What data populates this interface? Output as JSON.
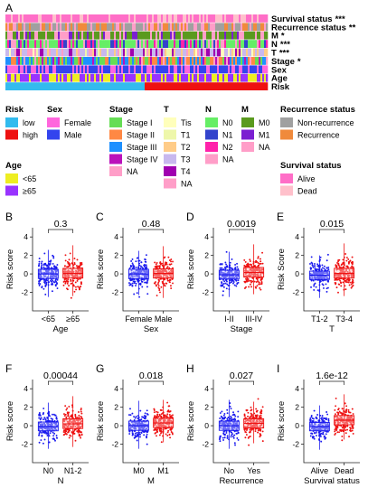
{
  "panel_a": {
    "label": "A",
    "tracks": [
      {
        "name": "Survival status",
        "sig": "***"
      },
      {
        "name": "Recurrence status",
        "sig": "**"
      },
      {
        "name": "M",
        "sig": "*"
      },
      {
        "name": "N",
        "sig": "***"
      },
      {
        "name": "T",
        "sig": "***"
      },
      {
        "name": "Stage",
        "sig": "*"
      },
      {
        "name": "Sex",
        "sig": ""
      },
      {
        "name": "Age",
        "sig": ""
      },
      {
        "name": "Risk",
        "sig": ""
      }
    ],
    "colors": {
      "Survival status": {
        "Alive": "#ff6ec7",
        "Dead": "#ffc0cb"
      },
      "Recurrence status": {
        "Non-recurrence": "#a0a0a0",
        "Recurrence": "#f08a3c",
        "NA": "#ff9ec8"
      },
      "M": {
        "M0": "#5a9a1e",
        "M1": "#7b1fd1",
        "NA": "#ff9ec8"
      },
      "N": {
        "N0": "#66ee66",
        "N1": "#3344cc",
        "N2": "#ff22aa",
        "NA": "#ff9ec8"
      },
      "T": {
        "Tis": "#ffffbb",
        "T1": "#eef7aa",
        "T2": "#ffcc88",
        "T3": "#c8b8ee",
        "T4": "#a000b0",
        "NA": "#ff9ec8"
      },
      "Stage": {
        "Stage I": "#66dd55",
        "Stage II": "#ff8844",
        "Stage III": "#1e90ff",
        "Stage IV": "#bb11bb",
        "NA": "#ff9ec8"
      },
      "Sex": {
        "Female": "#ff66dd",
        "Male": "#3344ee"
      },
      "Age": {
        "<65": "#eeee22",
        "≥65": "#9933ff"
      },
      "Risk": {
        "low": "#33bbee",
        "high": "#ee1111"
      }
    },
    "risk_low_fraction": 0.53
  },
  "legend": {
    "risk": {
      "title": "Risk",
      "items": [
        "low",
        "high"
      ]
    },
    "sex": {
      "title": "Sex",
      "items": [
        "Female",
        "Male"
      ]
    },
    "stage": {
      "title": "Stage",
      "items": [
        "Stage I",
        "Stage II",
        "Stage III",
        "Stage IV",
        "NA"
      ]
    },
    "t": {
      "title": "T",
      "items": [
        "Tis",
        "T1",
        "T2",
        "T3",
        "T4",
        "NA"
      ]
    },
    "n": {
      "title": "N",
      "items": [
        "N0",
        "N1",
        "N2",
        "NA"
      ]
    },
    "m": {
      "title": "M",
      "items": [
        "M0",
        "M1",
        "NA"
      ]
    },
    "recurrence": {
      "title": "Recurrence status",
      "items": [
        "Non-recurrence",
        "Recurrence"
      ]
    },
    "age": {
      "title": "Age",
      "items": [
        "<65",
        "≥65"
      ]
    },
    "survival": {
      "title": "Survival status",
      "items": [
        "Alive",
        "Dead"
      ]
    }
  },
  "chart_data": [
    {
      "type": "box",
      "panel": "B",
      "categories": [
        "<65",
        "≥65"
      ],
      "xlabel": "Age",
      "ylabel": "Risk score",
      "pvalue": "0.3",
      "ylim": [
        -4,
        5
      ],
      "yticks": [
        -2,
        0,
        2,
        4
      ],
      "series": [
        {
          "group": "<65",
          "median": 0.0,
          "q1": -0.5,
          "q3": 0.5,
          "min": -2.5,
          "max": 2.6
        },
        {
          "group": "≥65",
          "median": 0.05,
          "q1": -0.45,
          "q3": 0.6,
          "min": -2.4,
          "max": 3.1
        }
      ]
    },
    {
      "type": "box",
      "panel": "C",
      "categories": [
        "Female",
        "Male"
      ],
      "xlabel": "Sex",
      "ylabel": "Risk score",
      "pvalue": "0.48",
      "ylim": [
        -4,
        5
      ],
      "yticks": [
        -2,
        0,
        2,
        4
      ],
      "series": [
        {
          "group": "Female",
          "median": 0.0,
          "q1": -0.5,
          "q3": 0.5,
          "min": -2.3,
          "max": 2.5
        },
        {
          "group": "Male",
          "median": 0.05,
          "q1": -0.45,
          "q3": 0.55,
          "min": -2.6,
          "max": 3.0
        }
      ]
    },
    {
      "type": "box",
      "panel": "D",
      "categories": [
        "I-II",
        "III-IV"
      ],
      "xlabel": "Stage",
      "ylabel": "Risk score",
      "pvalue": "0.0019",
      "ylim": [
        -4,
        5
      ],
      "yticks": [
        -2,
        0,
        2,
        4
      ],
      "series": [
        {
          "group": "I-II",
          "median": -0.1,
          "q1": -0.55,
          "q3": 0.4,
          "min": -2.5,
          "max": 2.4
        },
        {
          "group": "III-IV",
          "median": 0.15,
          "q1": -0.35,
          "q3": 0.7,
          "min": -2.2,
          "max": 3.2
        }
      ]
    },
    {
      "type": "box",
      "panel": "E",
      "categories": [
        "T1-2",
        "T3-4"
      ],
      "xlabel": "T",
      "ylabel": "Risk Score",
      "pvalue": "0.015",
      "ylim": [
        -4,
        5
      ],
      "yticks": [
        -2,
        0,
        2,
        4
      ],
      "series": [
        {
          "group": "T1-2",
          "median": -0.15,
          "q1": -0.6,
          "q3": 0.3,
          "min": -2.6,
          "max": 2.0
        },
        {
          "group": "T3-4",
          "median": 0.05,
          "q1": -0.45,
          "q3": 0.6,
          "min": -2.4,
          "max": 3.3
        }
      ]
    },
    {
      "type": "box",
      "panel": "F",
      "categories": [
        "N0",
        "N1-2"
      ],
      "xlabel": "N",
      "ylabel": "Risk score",
      "pvalue": "0.00044",
      "ylim": [
        -4,
        5
      ],
      "yticks": [
        -2,
        0,
        2,
        4
      ],
      "series": [
        {
          "group": "N0",
          "median": -0.1,
          "q1": -0.55,
          "q3": 0.4,
          "min": -2.5,
          "max": 2.5
        },
        {
          "group": "N1-2",
          "median": 0.2,
          "q1": -0.3,
          "q3": 0.75,
          "min": -2.3,
          "max": 3.2
        }
      ]
    },
    {
      "type": "box",
      "panel": "G",
      "categories": [
        "M0",
        "M1"
      ],
      "xlabel": "M",
      "ylabel": "Risk score",
      "pvalue": "0.018",
      "ylim": [
        -4,
        5
      ],
      "yticks": [
        -2,
        0,
        2,
        4
      ],
      "series": [
        {
          "group": "M0",
          "median": 0.0,
          "q1": -0.5,
          "q3": 0.5,
          "min": -2.5,
          "max": 2.7
        },
        {
          "group": "M1",
          "median": 0.3,
          "q1": -0.2,
          "q3": 0.8,
          "min": -1.8,
          "max": 2.8
        }
      ]
    },
    {
      "type": "box",
      "panel": "H",
      "categories": [
        "No",
        "Yes"
      ],
      "xlabel": "Recurrence",
      "ylabel": "Risk score",
      "pvalue": "0.027",
      "ylim": [
        -4,
        5
      ],
      "yticks": [
        -2,
        0,
        2,
        4
      ],
      "series": [
        {
          "group": "No",
          "median": 0.0,
          "q1": -0.5,
          "q3": 0.5,
          "min": -2.5,
          "max": 2.8
        },
        {
          "group": "Yes",
          "median": 0.25,
          "q1": -0.25,
          "q3": 0.75,
          "min": -1.9,
          "max": 2.6
        }
      ]
    },
    {
      "type": "box",
      "panel": "I",
      "categories": [
        "Alive",
        "Dead"
      ],
      "xlabel": "Survival status",
      "ylabel": "Risk score",
      "pvalue": "1.6e-12",
      "ylim": [
        -4,
        5
      ],
      "yticks": [
        -2,
        0,
        2,
        4
      ],
      "series": [
        {
          "group": "Alive",
          "median": -0.1,
          "q1": -0.55,
          "q3": 0.35,
          "min": -2.6,
          "max": 2.2
        },
        {
          "group": "Dead",
          "median": 0.6,
          "q1": 0.1,
          "q3": 1.1,
          "min": -1.5,
          "max": 3.4
        }
      ]
    }
  ]
}
